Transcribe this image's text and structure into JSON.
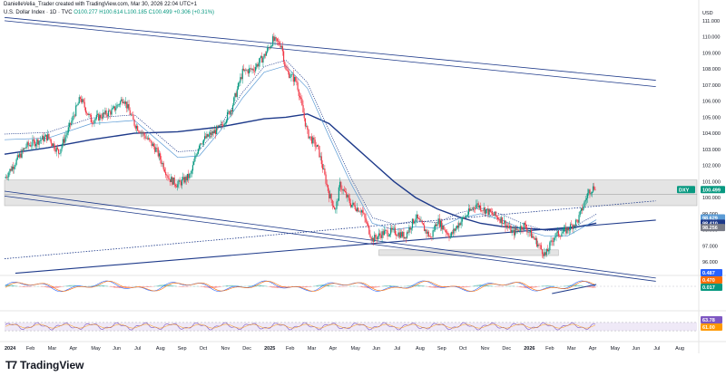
{
  "header": {
    "line1": "DanielleVelia_Trader created with TradingView.com, Mar 30, 2026 22:04 UTC+1",
    "symbol": "U.S. Dollar Index · 1D · TVC",
    "ohlc": "O100.277 H100.614 L100.185 C100.499",
    "change": "+0.306 (+0.31%)"
  },
  "brand": {
    "logo": "T7",
    "name": "TradingView"
  },
  "colors": {
    "up": "#089981",
    "down": "#f23645",
    "ma_slow": "#1e3a8a",
    "ma_fast": "#5b9bd5",
    "channel": "#1e3a8a",
    "zone": "#e0e0e0",
    "rsi_band": "#ede7f6",
    "rsi_line": "#7e57c2"
  },
  "chart_data": {
    "type": "candlestick",
    "currency_label": "USD",
    "price_axis": {
      "min": 95.5,
      "max": 111.5,
      "ticks": [
        "111.000",
        "110.000",
        "109.000",
        "108.000",
        "107.000",
        "106.000",
        "105.000",
        "104.000",
        "103.000",
        "102.000",
        "101.000",
        "100.000",
        "99.000",
        "98.000",
        "97.000",
        "96.000",
        "95.000"
      ]
    },
    "time_axis": [
      "2024",
      "Feb",
      "Mar",
      "Apr",
      "May",
      "Jun",
      "Jul",
      "Aug",
      "Sep",
      "Oct",
      "Nov",
      "Dec",
      "2025",
      "Feb",
      "Mar",
      "Apr",
      "May",
      "Jun",
      "Jul",
      "Aug",
      "Sep",
      "Oct",
      "Nov",
      "Dec",
      "2026",
      "Feb",
      "Mar",
      "Apr",
      "May",
      "Jun",
      "Jul",
      "Aug"
    ],
    "price_path": [
      [
        0,
        101.2
      ],
      [
        1,
        103.2
      ],
      [
        2,
        103.8
      ],
      [
        2.5,
        102.8
      ],
      [
        3,
        104.4
      ],
      [
        3.5,
        106.2
      ],
      [
        4,
        104.8
      ],
      [
        5,
        105.4
      ],
      [
        5.5,
        106.2
      ],
      [
        6,
        104.6
      ],
      [
        7,
        103.0
      ],
      [
        7.6,
        101.2
      ],
      [
        8,
        100.8
      ],
      [
        8.6,
        101.4
      ],
      [
        9,
        103.4
      ],
      [
        10,
        104.4
      ],
      [
        10.5,
        105.6
      ],
      [
        11,
        107.8
      ],
      [
        11.5,
        108.0
      ],
      [
        12,
        108.8
      ],
      [
        12.4,
        109.8
      ],
      [
        12.8,
        109.5
      ],
      [
        13,
        107.9
      ],
      [
        13.5,
        107.2
      ],
      [
        14,
        104.0
      ],
      [
        14.5,
        103.0
      ],
      [
        15,
        100.2
      ],
      [
        15.3,
        99.2
      ],
      [
        15.5,
        100.8
      ],
      [
        16,
        99.6
      ],
      [
        16.5,
        99.2
      ],
      [
        17,
        97.4
      ],
      [
        17.5,
        97.8
      ],
      [
        18,
        97.9
      ],
      [
        18.5,
        97.6
      ],
      [
        19,
        98.8
      ],
      [
        19.7,
        97.5
      ],
      [
        20,
        98.6
      ],
      [
        20.6,
        97.6
      ],
      [
        21,
        98.4
      ],
      [
        21.8,
        99.6
      ],
      [
        22,
        99.4
      ],
      [
        23,
        98.6
      ],
      [
        23.5,
        97.8
      ],
      [
        24,
        98.3
      ],
      [
        24.5,
        97.4
      ],
      [
        25,
        96.4
      ],
      [
        25.4,
        97.6
      ],
      [
        26,
        98.0
      ],
      [
        26.5,
        98.6
      ],
      [
        27,
        100.4
      ],
      [
        27.3,
        100.7
      ],
      [
        27.35,
        100.499
      ]
    ],
    "moving_average_slow": [
      [
        0,
        102.7
      ],
      [
        2,
        103.1
      ],
      [
        4,
        103.6
      ],
      [
        6,
        104.0
      ],
      [
        8,
        104.1
      ],
      [
        10,
        104.4
      ],
      [
        12,
        104.9
      ],
      [
        13,
        105.0
      ],
      [
        14,
        105.2
      ],
      [
        15,
        104.6
      ],
      [
        16,
        103.4
      ],
      [
        17,
        102.2
      ],
      [
        18,
        101.0
      ],
      [
        19,
        100.0
      ],
      [
        20,
        99.3
      ],
      [
        21,
        98.8
      ],
      [
        22,
        98.4
      ],
      [
        23,
        98.2
      ],
      [
        24,
        98.1
      ],
      [
        25,
        98.0
      ],
      [
        26,
        98.05
      ],
      [
        27.35,
        98.41
      ]
    ],
    "moving_average_fast": [
      [
        0,
        103.6
      ],
      [
        2,
        103.7
      ],
      [
        4,
        104.6
      ],
      [
        6,
        104.8
      ],
      [
        8,
        102.5
      ],
      [
        9,
        102.6
      ],
      [
        10,
        104.2
      ],
      [
        11,
        106.2
      ],
      [
        12,
        107.8
      ],
      [
        13,
        108.2
      ],
      [
        14,
        106.8
      ],
      [
        15,
        103.8
      ],
      [
        16,
        100.9
      ],
      [
        17,
        98.4
      ],
      [
        18,
        98.0
      ],
      [
        19,
        98.2
      ],
      [
        20,
        98.1
      ],
      [
        21,
        98.7
      ],
      [
        22,
        99.0
      ],
      [
        23,
        98.6
      ],
      [
        24,
        98.0
      ],
      [
        25,
        97.6
      ],
      [
        26,
        97.6
      ],
      [
        27.35,
        98.62
      ]
    ],
    "price_labels": [
      {
        "text": "DXY",
        "value": 100.499,
        "color": "#089981"
      },
      {
        "text": "100.499",
        "value": 100.499,
        "color": "#089981"
      },
      {
        "text": "98.629",
        "value": 98.629,
        "color": "#5b9bd5"
      },
      {
        "text": "98.410",
        "value": 98.41,
        "color": "#1e3a8a"
      },
      {
        "text": "98.256",
        "value": 98.256,
        "color": "#787b86"
      }
    ],
    "support_zones": [
      {
        "from": 100.2,
        "to": 101.1
      },
      {
        "from": 99.5,
        "to": 100.2
      },
      {
        "from": 96.4,
        "to": 96.75
      }
    ],
    "macd": {
      "labels": [
        "0.487",
        "0.470",
        "0.017"
      ],
      "label_colors": [
        "#2962ff",
        "#ff6d00",
        "#089981"
      ]
    },
    "rsi": {
      "labels": [
        "63.78",
        "61.00"
      ],
      "label_colors": [
        "#7e57c2",
        "#ff9800"
      ],
      "band": [
        30,
        70
      ]
    }
  }
}
